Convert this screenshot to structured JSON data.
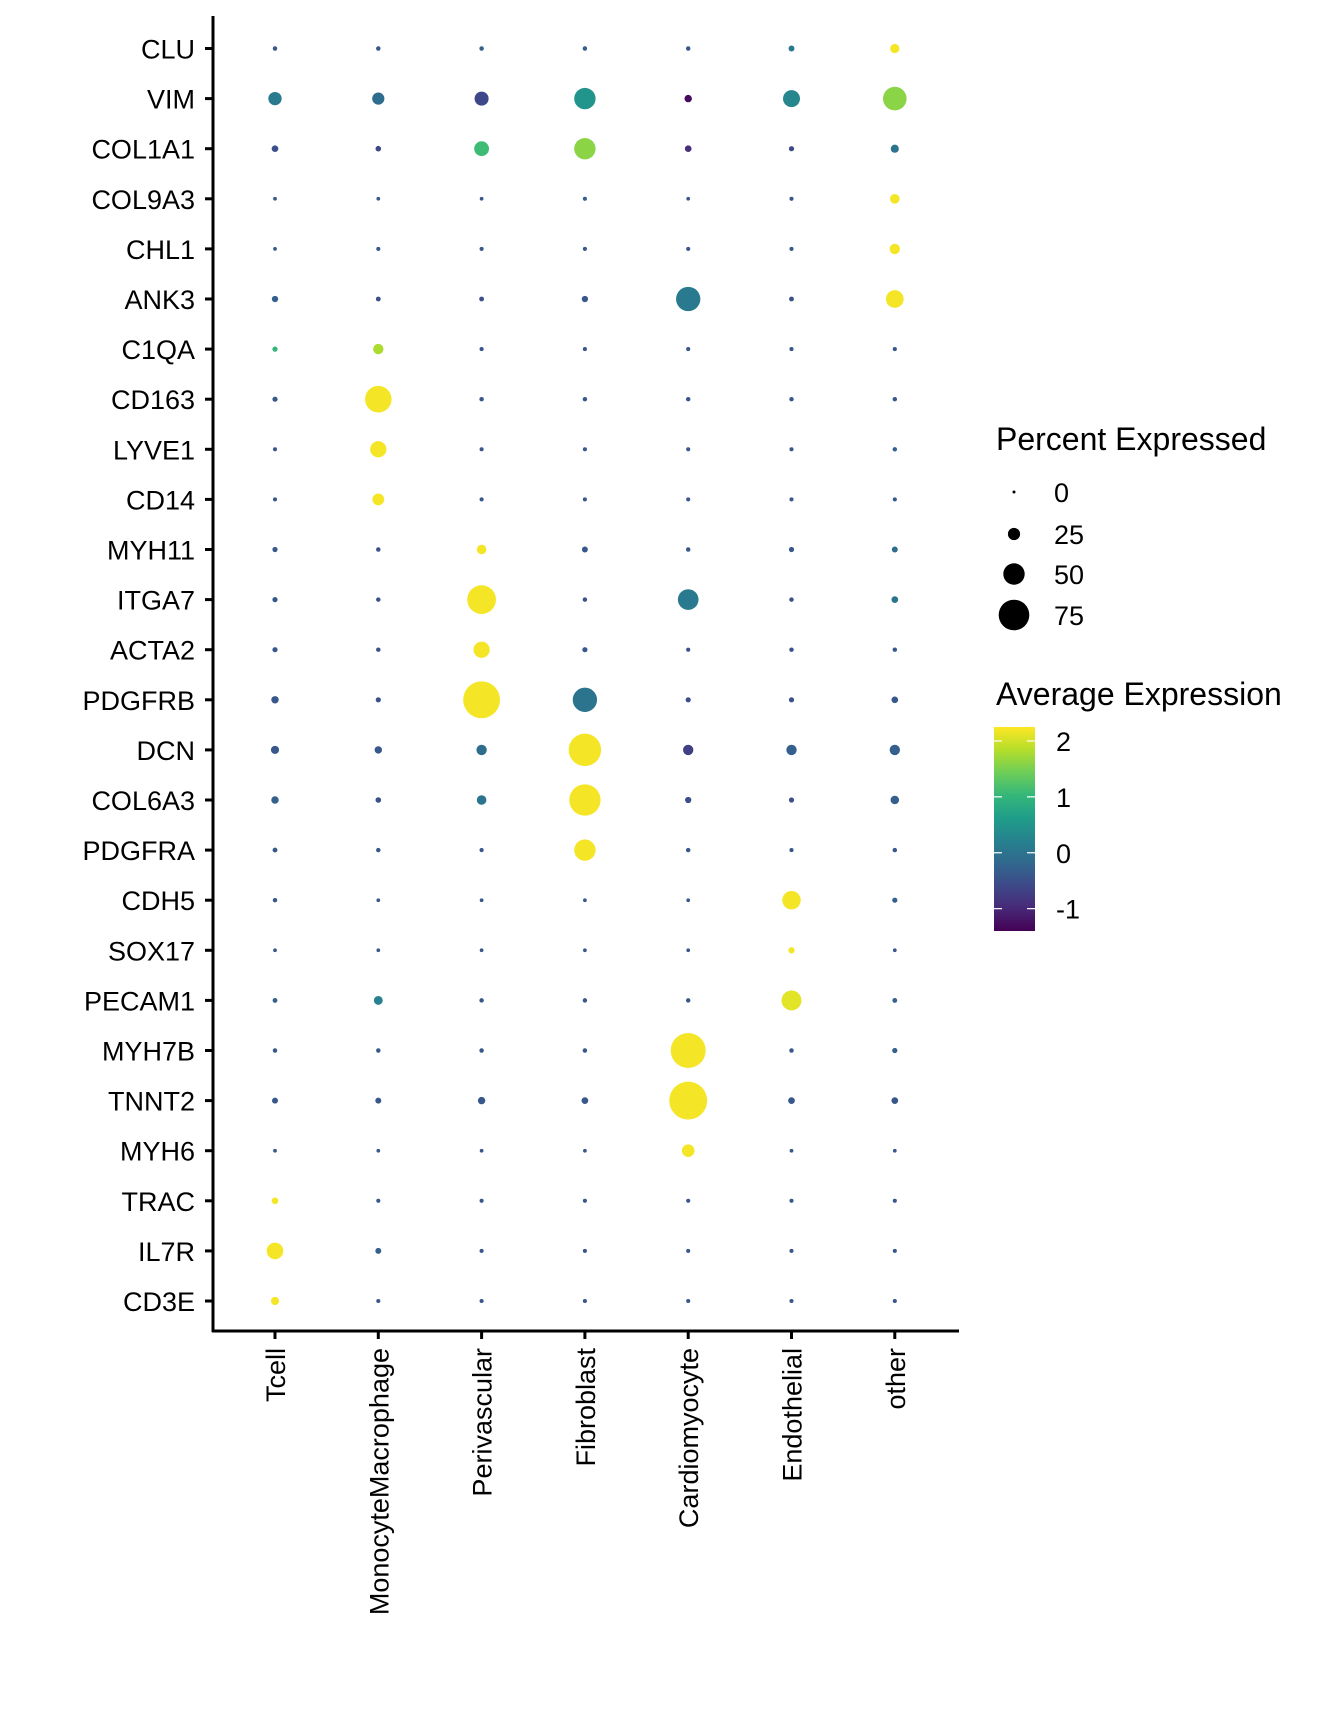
{
  "chart_data": {
    "type": "scatter",
    "subtype": "dot-plot",
    "title": "",
    "xlabel": "",
    "ylabel": "",
    "x": [
      "Tcell",
      "MonocyteMacrophage",
      "Perivascular",
      "Fibroblast",
      "Cardiomyocyte",
      "Endothelial",
      "other"
    ],
    "y": [
      "CLU",
      "VIM",
      "COL1A1",
      "COL9A3",
      "CHL1",
      "ANK3",
      "C1QA",
      "CD163",
      "LYVE1",
      "CD14",
      "MYH11",
      "ITGA7",
      "ACTA2",
      "PDGFRB",
      "DCN",
      "COL6A3",
      "PDGFRA",
      "CDH5",
      "SOX17",
      "PECAM1",
      "MYH7B",
      "TNNT2",
      "MYH6",
      "TRAC",
      "IL7R",
      "CD3E"
    ],
    "percent_expressed": [
      [
        4,
        4,
        4,
        4,
        4,
        8,
        17
      ],
      [
        28,
        25,
        30,
        50,
        12,
        38,
        56
      ],
      [
        10,
        7,
        32,
        50,
        10,
        6,
        14
      ],
      [
        2,
        2,
        2,
        3,
        2,
        3,
        18
      ],
      [
        2,
        3,
        3,
        3,
        3,
        3,
        20
      ],
      [
        9,
        5,
        5,
        9,
        58,
        5,
        40
      ],
      [
        6,
        20,
        3,
        3,
        3,
        3,
        3
      ],
      [
        6,
        64,
        4,
        4,
        4,
        4,
        4
      ],
      [
        3,
        36,
        3,
        3,
        3,
        3,
        4
      ],
      [
        3,
        24,
        3,
        3,
        3,
        3,
        3
      ],
      [
        6,
        4,
        18,
        8,
        4,
        6,
        8
      ],
      [
        6,
        4,
        70,
        4,
        48,
        4,
        10
      ],
      [
        6,
        4,
        36,
        6,
        3,
        4,
        4
      ],
      [
        12,
        6,
        92,
        58,
        6,
        6,
        10
      ],
      [
        14,
        12,
        20,
        80,
        20,
        20,
        20
      ],
      [
        12,
        7,
        18,
        77,
        9,
        6,
        15
      ],
      [
        5,
        4,
        3,
        50,
        4,
        3,
        4
      ],
      [
        4,
        2,
        2,
        2,
        2,
        42,
        6
      ],
      [
        2,
        2,
        2,
        2,
        2,
        9,
        2
      ],
      [
        5,
        16,
        4,
        4,
        4,
        46,
        5
      ],
      [
        4,
        4,
        4,
        4,
        87,
        4,
        6
      ],
      [
        8,
        8,
        12,
        10,
        95,
        10,
        10
      ],
      [
        2,
        2,
        2,
        2,
        26,
        2,
        2
      ],
      [
        10,
        3,
        3,
        3,
        3,
        3,
        3
      ],
      [
        37,
        8,
        3,
        3,
        3,
        3,
        3
      ],
      [
        14,
        3,
        3,
        3,
        3,
        3,
        3
      ]
    ],
    "average_expression": [
      [
        -0.4,
        -0.4,
        -0.3,
        -0.3,
        -0.4,
        0.1,
        2.2
      ],
      [
        0.1,
        -0.1,
        -0.6,
        0.5,
        -1.3,
        0.3,
        1.6
      ],
      [
        -0.5,
        -0.6,
        1.1,
        1.6,
        -0.9,
        -0.6,
        0.0
      ],
      [
        -0.4,
        -0.4,
        -0.4,
        -0.3,
        -0.4,
        -0.4,
        2.2
      ],
      [
        -0.4,
        -0.4,
        -0.4,
        -0.4,
        -0.4,
        -0.4,
        2.2
      ],
      [
        -0.3,
        -0.5,
        -0.5,
        -0.4,
        0.1,
        -0.5,
        2.2
      ],
      [
        1.0,
        1.8,
        -0.4,
        -0.4,
        -0.4,
        -0.4,
        -0.4
      ],
      [
        -0.4,
        2.2,
        -0.4,
        -0.4,
        -0.4,
        -0.4,
        -0.4
      ],
      [
        -0.4,
        2.2,
        -0.4,
        -0.4,
        -0.4,
        -0.4,
        -0.3
      ],
      [
        -0.4,
        2.2,
        -0.4,
        -0.4,
        -0.4,
        -0.4,
        -0.4
      ],
      [
        -0.4,
        -0.5,
        2.2,
        -0.4,
        -0.4,
        -0.4,
        -0.1
      ],
      [
        -0.4,
        -0.5,
        2.2,
        -0.5,
        0.1,
        -0.5,
        0.0
      ],
      [
        -0.4,
        -0.5,
        2.2,
        -0.4,
        -0.5,
        -0.5,
        -0.4
      ],
      [
        -0.4,
        -0.5,
        2.2,
        0.0,
        -0.5,
        -0.5,
        -0.4
      ],
      [
        -0.4,
        -0.4,
        -0.1,
        2.2,
        -0.7,
        -0.3,
        -0.3
      ],
      [
        -0.3,
        -0.5,
        0.0,
        2.2,
        -0.5,
        -0.5,
        -0.3
      ],
      [
        -0.4,
        -0.4,
        -0.4,
        2.2,
        -0.4,
        -0.4,
        -0.4
      ],
      [
        -0.4,
        -0.4,
        -0.4,
        -0.4,
        -0.4,
        2.2,
        -0.3
      ],
      [
        -0.4,
        -0.4,
        -0.4,
        -0.4,
        -0.4,
        2.2,
        -0.4
      ],
      [
        -0.3,
        0.2,
        -0.4,
        -0.4,
        -0.4,
        2.1,
        -0.3
      ],
      [
        -0.4,
        -0.4,
        -0.4,
        -0.4,
        2.2,
        -0.4,
        -0.3
      ],
      [
        -0.4,
        -0.4,
        -0.4,
        -0.4,
        2.2,
        -0.4,
        -0.4
      ],
      [
        -0.4,
        -0.4,
        -0.4,
        -0.4,
        2.2,
        -0.4,
        -0.4
      ],
      [
        2.2,
        -0.4,
        -0.4,
        -0.4,
        -0.4,
        -0.4,
        -0.4
      ],
      [
        2.2,
        -0.3,
        -0.4,
        -0.4,
        -0.4,
        -0.4,
        -0.4
      ],
      [
        2.2,
        -0.4,
        -0.4,
        -0.4,
        -0.4,
        -0.4,
        -0.4
      ]
    ],
    "size_legend": {
      "title": "Percent Expressed",
      "breaks": [
        0,
        25,
        50,
        75
      ],
      "labels": [
        "0",
        "25",
        "50",
        "75"
      ]
    },
    "color_legend": {
      "title": "Average Expression",
      "breaks": [
        2,
        1,
        0,
        -1
      ],
      "labels": [
        "2",
        "1",
        "0",
        "-1"
      ],
      "range": [
        -1.4,
        2.25
      ],
      "palette": "viridis",
      "colors": [
        "#440154",
        "#482878",
        "#3e4989",
        "#31688e",
        "#26828e",
        "#1f9e89",
        "#35b779",
        "#6ece58",
        "#b5de2b",
        "#fde725"
      ]
    },
    "legend_position": "right",
    "grid": false
  }
}
